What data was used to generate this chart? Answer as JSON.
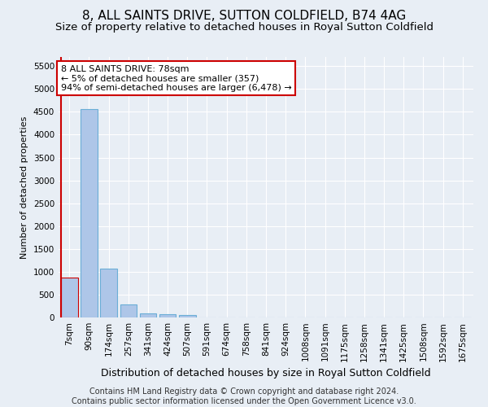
{
  "title": "8, ALL SAINTS DRIVE, SUTTON COLDFIELD, B74 4AG",
  "subtitle": "Size of property relative to detached houses in Royal Sutton Coldfield",
  "xlabel": "Distribution of detached houses by size in Royal Sutton Coldfield",
  "ylabel": "Number of detached properties",
  "footer_line1": "Contains HM Land Registry data © Crown copyright and database right 2024.",
  "footer_line2": "Contains public sector information licensed under the Open Government Licence v3.0.",
  "annotation_title": "8 ALL SAINTS DRIVE: 78sqm",
  "annotation_line1": "← 5% of detached houses are smaller (357)",
  "annotation_line2": "94% of semi-detached houses are larger (6,478) →",
  "bar_categories": [
    "7sqm",
    "90sqm",
    "174sqm",
    "257sqm",
    "341sqm",
    "424sqm",
    "507sqm",
    "591sqm",
    "674sqm",
    "758sqm",
    "841sqm",
    "924sqm",
    "1008sqm",
    "1091sqm",
    "1175sqm",
    "1258sqm",
    "1341sqm",
    "1425sqm",
    "1508sqm",
    "1592sqm",
    "1675sqm"
  ],
  "bar_values": [
    870,
    4560,
    1060,
    280,
    95,
    80,
    55,
    0,
    0,
    0,
    0,
    0,
    0,
    0,
    0,
    0,
    0,
    0,
    0,
    0,
    0
  ],
  "bar_color": "#aec6e8",
  "bar_edge_color": "#6aaed6",
  "highlight_color": "#cc0000",
  "annotation_box_color": "#ffffff",
  "annotation_box_edge": "#cc0000",
  "ylim": [
    0,
    5700
  ],
  "yticks": [
    0,
    500,
    1000,
    1500,
    2000,
    2500,
    3000,
    3500,
    4000,
    4500,
    5000,
    5500
  ],
  "bg_color": "#e8eef5",
  "plot_bg_color": "#e8eef5",
  "grid_color": "#ffffff",
  "title_fontsize": 11,
  "subtitle_fontsize": 9.5,
  "xlabel_fontsize": 9,
  "ylabel_fontsize": 8,
  "tick_fontsize": 7.5,
  "annotation_fontsize": 8,
  "footer_fontsize": 7
}
